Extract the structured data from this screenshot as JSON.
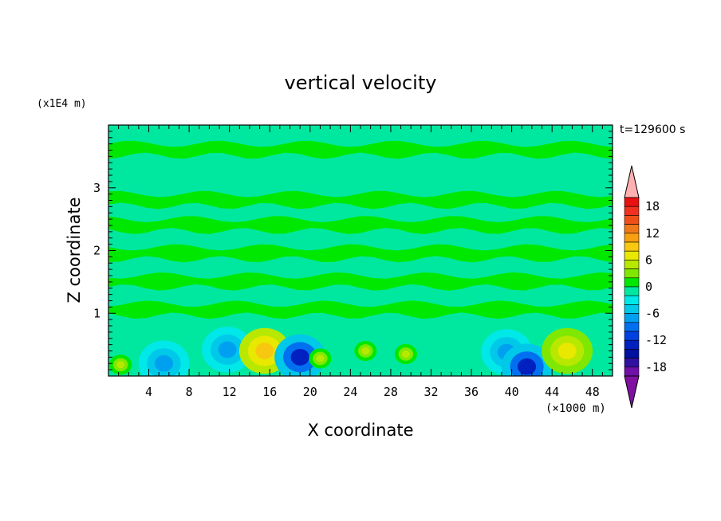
{
  "chart_data": {
    "type": "heatmap",
    "title": "vertical velocity",
    "xlabel": "X coordinate",
    "ylabel": "Z coordinate",
    "x_units": "(×1000 m)",
    "y_units": "(x1E4 m)",
    "time_label": "t=129600 s",
    "xlim": [
      0,
      50
    ],
    "ylim": [
      0,
      4
    ],
    "x_ticks": [
      4,
      8,
      12,
      16,
      20,
      24,
      28,
      32,
      36,
      40,
      44,
      48
    ],
    "y_ticks": [
      1,
      2,
      3
    ],
    "colorbar": {
      "levels": [
        -20,
        -18,
        -16,
        -14,
        -12,
        -10,
        -8,
        -6,
        -4,
        -2,
        0,
        2,
        4,
        6,
        8,
        10,
        12,
        14,
        16,
        18,
        20
      ],
      "tick_labels": [
        "18",
        "12",
        "6",
        "0",
        "-6",
        "-12",
        "-18"
      ],
      "tick_values": [
        18,
        12,
        6,
        0,
        -6,
        -12,
        -18
      ],
      "colors": [
        "#ffb0b0",
        "#e81010",
        "#f03020",
        "#f05018",
        "#f07818",
        "#f8a010",
        "#f8c810",
        "#e8e800",
        "#b8e800",
        "#80e800",
        "#00e800",
        "#00e8a0",
        "#00e8e8",
        "#00c8e8",
        "#00a0f0",
        "#0070f0",
        "#0040e0",
        "#0020c0",
        "#0010a0",
        "#3010a0",
        "#7010a8",
        "#8010a0"
      ]
    },
    "features": [
      {
        "x": 1.2,
        "z": 0.18,
        "w": 0.2
      },
      {
        "x": 5.5,
        "z": 0.2,
        "w": -0.6
      },
      {
        "x": 11.8,
        "z": 0.42,
        "w": -1.1
      },
      {
        "x": 15.5,
        "z": 0.4,
        "w": 0.7
      },
      {
        "x": 19.0,
        "z": 0.3,
        "w": -1.5
      },
      {
        "x": 21.0,
        "z": 0.28,
        "w": 0.2
      },
      {
        "x": 25.5,
        "z": 0.4,
        "w": 0.2
      },
      {
        "x": 29.5,
        "z": 0.35,
        "w": 0.2
      },
      {
        "x": 39.5,
        "z": 0.38,
        "w": -1.0
      },
      {
        "x": 41.5,
        "z": 0.15,
        "w": -1.4
      },
      {
        "x": 45.5,
        "z": 0.4,
        "w": 0.5
      }
    ],
    "bands": [
      {
        "z": 3.6,
        "w": 0.4
      },
      {
        "z": 2.8,
        "w": 0.4
      },
      {
        "z": 2.4,
        "w": 0.4
      },
      {
        "z": 1.95,
        "w": 0.4
      },
      {
        "z": 1.5,
        "w": 0.4
      },
      {
        "z": 1.05,
        "w": 0.4
      }
    ]
  }
}
